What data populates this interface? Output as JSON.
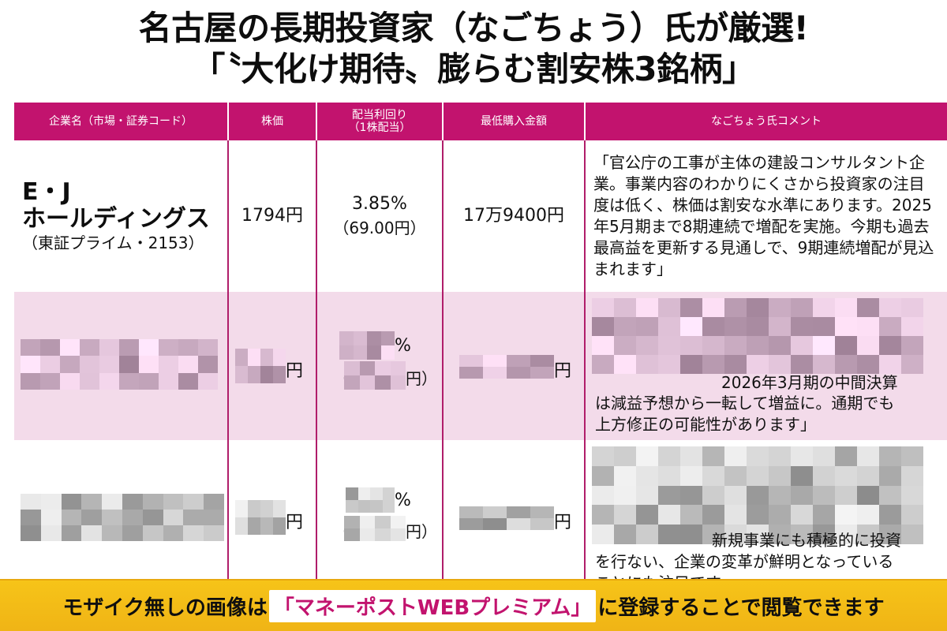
{
  "title": {
    "line1": "名古屋の長期投資家（なごちょう）氏が厳選!",
    "line2": "「〝大化け期待〟膨らむ割安株3銘柄」"
  },
  "table": {
    "headers": [
      "企業名（市場・証券コード）",
      "株価",
      "配当利回り\n（1株配当）",
      "最低購入金額",
      "なごちょう氏コメント"
    ],
    "rows": [
      {
        "name": "E・J\nホールディングス",
        "code": "（東証プライム・2153）",
        "price": "1794円",
        "yield_pct": "3.85%",
        "yield_div": "（69.00円）",
        "min_buy": "17万9400円",
        "comment": "「官公庁の工事が主体の建設コンサルタント企業。事業内容のわかりにくさから投資家の注目度は低く、株価は割安な水準にあります。2025年5月期まで8期連続で増配を実施。今期も過去最高益を更新する見通しで、9期連続増配が見込まれます」"
      },
      {
        "price_suffix": "円",
        "yield_suffix": "%",
        "div_open": "（",
        "div_suffix": "円）",
        "min_buy_suffix": "円",
        "comment_tail_1": "2026年3月期の中間決算",
        "comment_tail_2": "は減益予想から一転して増益に。通期でも",
        "comment_tail_3": "上方修正の可能性があります」"
      },
      {
        "price_suffix": "円",
        "yield_suffix": "%",
        "div_open": "（",
        "div_suffix": "円）",
        "min_buy_suffix": "円",
        "comment_tail_1": "新規事業にも積極的に投資",
        "comment_tail_2": "を行ない、企業の変革が鮮明となっている",
        "comment_tail_3": "ことにも注目です」"
      }
    ]
  },
  "banner": {
    "prefix": "モザイク無しの画像は",
    "highlight": "「マネーポストWEBプレミアム」",
    "suffix": "に登録することで閲覧できます"
  },
  "colors": {
    "header_bg": "#c2136e",
    "row_highlight": "#f3dbea",
    "banner_bg": "#f6c418"
  }
}
